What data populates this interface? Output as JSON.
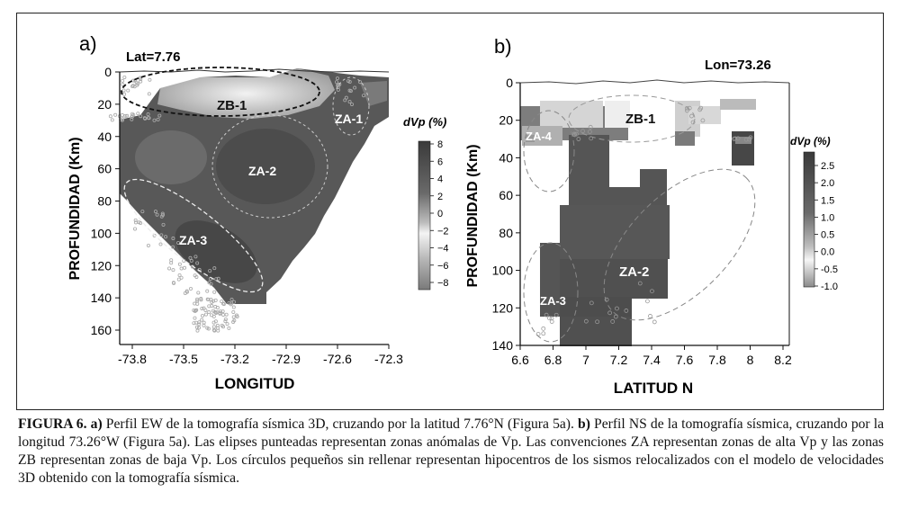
{
  "panel_a": {
    "letter": "a)",
    "lat_label": "Lat=7.76",
    "ylabel": "PROFUNDIDAD (Km)",
    "xlabel": "LONGITUD",
    "xticks": [
      "-73.8",
      "-73.5",
      "-73.2",
      "-72.9",
      "-72.6",
      "-72.3"
    ],
    "yticks": [
      "0",
      "20",
      "40",
      "60",
      "80",
      "100",
      "120",
      "140",
      "160"
    ],
    "zones": [
      "ZB-1",
      "ZA-1",
      "ZA-2",
      "ZA-3"
    ],
    "colorbar_title": "dVp (%)",
    "colorbar_ticks": [
      "8",
      "6",
      "4",
      "2",
      "0",
      "−2",
      "−4",
      "−6",
      "−8"
    ]
  },
  "panel_b": {
    "letter": "b)",
    "lon_label": "Lon=73.26",
    "ylabel": "PROFUNDIDAD (Km)",
    "xlabel": "LATITUD N",
    "xticks": [
      "6.6",
      "6.8",
      "7",
      "7.2",
      "7.4",
      "7.6",
      "7.8",
      "8",
      "8.2"
    ],
    "yticks": [
      "0",
      "20",
      "40",
      "60",
      "80",
      "100",
      "120",
      "140"
    ],
    "zones": [
      "ZB-1",
      "ZA-4",
      "ZA-2",
      "ZA-3"
    ],
    "colorbar_title": "dVp (%)",
    "colorbar_ticks": [
      "2.5",
      "2.0",
      "1.5",
      "1.0",
      "0.5",
      "0.0",
      "-0.5",
      "-1.0"
    ]
  },
  "caption": {
    "label": "FIGURA 6.",
    "a_marker": "a)",
    "a_text": " Perfil EW  de la tomografía sísmica 3D, cruzando por la latitud 7.76°N (Figura 5a). ",
    "b_marker": "b)",
    "b_text": " Perfil NS  de la tomografía sísmica, cruzando por la longitud 73.26°W (Figura 5a). Las elipses punteadas representan zonas anómalas de Vp. Las convenciones ZA representan zonas de alta Vp y las zonas ZB representan zonas de baja Vp. Los círculos pequeños sin rellenar representan hipocentros de los sismos relocalizados con el modelo de velocidades 3D obtenido con la tomografía sísmica."
  },
  "colors": {
    "ink": "#111111",
    "dark_anomaly": "#4a4a4a",
    "light_anomaly": "#e8e8e8"
  }
}
